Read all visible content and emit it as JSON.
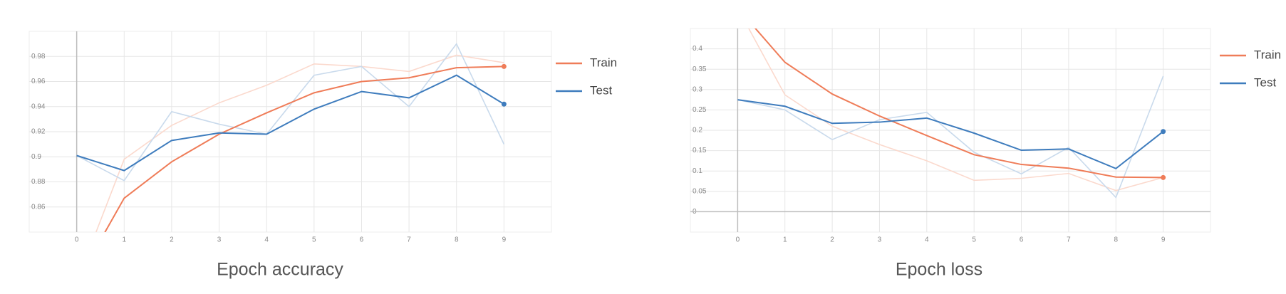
{
  "chart_data": [
    {
      "type": "line",
      "title": "Epoch accuracy",
      "x": [
        0,
        1,
        2,
        3,
        4,
        5,
        6,
        7,
        8,
        9
      ],
      "xlim": [
        -1,
        10
      ],
      "xticks": [
        0,
        1,
        2,
        3,
        4,
        5,
        6,
        7,
        8,
        9
      ],
      "ylim": [
        0.84,
        1.0
      ],
      "yticks": [
        0.86,
        0.88,
        0.9,
        0.92,
        0.94,
        0.96,
        0.98
      ],
      "grid": true,
      "series": [
        {
          "name": "Train",
          "color": "#ef7c58",
          "raw_color": "#fbd9cd",
          "values": [
            0.8,
            0.867,
            0.896,
            0.918,
            0.935,
            0.951,
            0.96,
            0.963,
            0.971,
            0.972
          ],
          "raw_values": [
            0.8,
            0.898,
            0.925,
            0.943,
            0.957,
            0.974,
            0.972,
            0.968,
            0.981,
            0.975
          ]
        },
        {
          "name": "Test",
          "color": "#3e7cbd",
          "raw_color": "#c9daec",
          "values": [
            0.901,
            0.889,
            0.913,
            0.919,
            0.918,
            0.938,
            0.952,
            0.947,
            0.965,
            0.942
          ],
          "raw_values": [
            0.901,
            0.881,
            0.936,
            0.926,
            0.918,
            0.965,
            0.972,
            0.94,
            0.99,
            0.91
          ]
        }
      ]
    },
    {
      "type": "line",
      "title": "Epoch loss",
      "x": [
        0,
        1,
        2,
        3,
        4,
        5,
        6,
        7,
        8,
        9
      ],
      "xlim": [
        -1,
        10
      ],
      "xticks": [
        0,
        1,
        2,
        3,
        4,
        5,
        6,
        7,
        8,
        9
      ],
      "ylim": [
        -0.05,
        0.45
      ],
      "yticks": [
        0,
        0.05,
        0.1,
        0.15,
        0.2,
        0.25,
        0.3,
        0.35,
        0.4
      ],
      "grid": true,
      "series": [
        {
          "name": "Train",
          "color": "#ef7c58",
          "raw_color": "#fbd9cd",
          "values": [
            0.5,
            0.367,
            0.289,
            0.235,
            0.187,
            0.14,
            0.116,
            0.107,
            0.085,
            0.084
          ],
          "raw_values": [
            0.5,
            0.287,
            0.21,
            0.165,
            0.125,
            0.077,
            0.082,
            0.094,
            0.052,
            0.084
          ]
        },
        {
          "name": "Test",
          "color": "#3e7cbd",
          "raw_color": "#c9daec",
          "values": [
            0.275,
            0.259,
            0.217,
            0.22,
            0.23,
            0.193,
            0.151,
            0.154,
            0.106,
            0.197
          ],
          "raw_values": [
            0.275,
            0.25,
            0.177,
            0.226,
            0.244,
            0.146,
            0.093,
            0.158,
            0.035,
            0.333
          ]
        }
      ]
    }
  ]
}
